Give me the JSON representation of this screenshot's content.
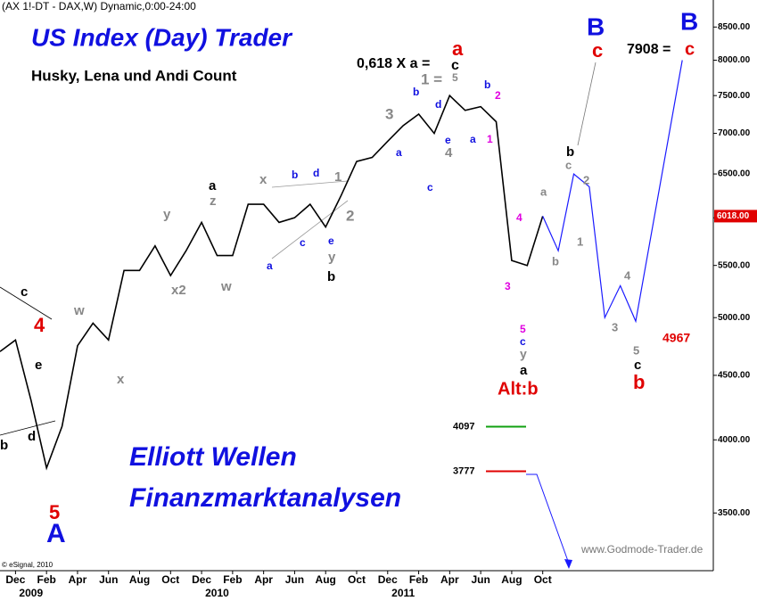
{
  "chart_data": {
    "type": "line",
    "header": "(AX 1!-DT - DAX,W) Dynamic,0:00-24:00",
    "copyright": "© eSignal, 2010",
    "source": "www.Godmode-Trader.de",
    "log_scale": true,
    "xlim": [
      "2008-11",
      "2012-09"
    ],
    "ylim": [
      3150,
      8930
    ],
    "yticks": [
      {
        "value": 3500,
        "label": "3500.00"
      },
      {
        "value": 4000,
        "label": "4000.00"
      },
      {
        "value": 4500,
        "label": "4500.00"
      },
      {
        "value": 5000,
        "label": "5000.00"
      },
      {
        "value": 5500,
        "label": "5500.00"
      },
      {
        "value": 6000,
        "label": "6000.00"
      },
      {
        "value": 6500,
        "label": "6500.00"
      },
      {
        "value": 7000,
        "label": "7000.00"
      },
      {
        "value": 7500,
        "label": "7500.00"
      },
      {
        "value": 8000,
        "label": "8000.00"
      },
      {
        "value": 8500,
        "label": "8500.00"
      }
    ],
    "xticks": [
      {
        "value": "2008-12",
        "label": "Dec"
      },
      {
        "value": "2009-02",
        "label": "Feb"
      },
      {
        "value": "2009-04",
        "label": "Apr"
      },
      {
        "value": "2009-06",
        "label": "Jun"
      },
      {
        "value": "2009-08",
        "label": "Aug"
      },
      {
        "value": "2009-10",
        "label": "Oct"
      },
      {
        "value": "2009-12",
        "label": "Dec"
      },
      {
        "value": "2010-02",
        "label": "Feb"
      },
      {
        "value": "2010-04",
        "label": "Apr"
      },
      {
        "value": "2010-06",
        "label": "Jun"
      },
      {
        "value": "2010-08",
        "label": "Aug"
      },
      {
        "value": "2010-10",
        "label": "Oct"
      },
      {
        "value": "2010-12",
        "label": "Dec"
      },
      {
        "value": "2011-02",
        "label": "Feb"
      },
      {
        "value": "2011-04",
        "label": "Apr"
      },
      {
        "value": "2011-06",
        "label": "Jun"
      },
      {
        "value": "2011-08",
        "label": "Aug"
      },
      {
        "value": "2011-10",
        "label": "Oct"
      }
    ],
    "year_labels": [
      {
        "value": "2009-01",
        "label": "2009"
      },
      {
        "value": "2010-01",
        "label": "2010"
      },
      {
        "value": "2011-01",
        "label": "2011"
      }
    ],
    "series": [
      {
        "name": "DAX",
        "color": "#000000",
        "x": [
          "2008-11",
          "2008-12",
          "2009-01",
          "2009-02",
          "2009-03",
          "2009-04",
          "2009-05",
          "2009-06",
          "2009-07",
          "2009-08",
          "2009-09",
          "2009-10",
          "2009-11",
          "2009-12",
          "2010-01",
          "2010-02",
          "2010-03",
          "2010-04",
          "2010-05",
          "2010-06",
          "2010-07",
          "2010-08",
          "2010-09",
          "2010-10",
          "2010-11",
          "2010-12",
          "2011-01",
          "2011-02",
          "2011-03",
          "2011-04",
          "2011-05",
          "2011-06",
          "2011-07",
          "2011-08",
          "2011-09",
          "2011-10"
        ],
        "values": [
          4700,
          4800,
          4300,
          3800,
          4100,
          4750,
          4950,
          4800,
          5450,
          5450,
          5700,
          5400,
          5650,
          5950,
          5600,
          5600,
          6150,
          6150,
          5950,
          6000,
          6150,
          5900,
          6250,
          6650,
          6700,
          6900,
          7100,
          7250,
          7000,
          7500,
          7300,
          7350,
          7150,
          5550,
          5500,
          6018
        ]
      },
      {
        "name": "Projection",
        "color": "#1a1aff",
        "x": [
          "2011-10",
          "2011-11",
          "2011-12",
          "2012-01",
          "2012-02",
          "2012-03",
          "2012-04",
          "2012-07"
        ],
        "values": [
          6018,
          5650,
          6500,
          6350,
          5000,
          5300,
          4967,
          8000
        ]
      }
    ],
    "last_price": {
      "value": 6018,
      "label": "6018.00"
    },
    "levels": [
      {
        "value": 4097,
        "color": "#10a010"
      },
      {
        "value": 3777,
        "color": "#e00000"
      }
    ],
    "annotations": [
      {
        "text": "US Index (Day) Trader",
        "color": "#1010e0"
      },
      {
        "text": "Husky, Lena und Andi Count",
        "color": "#000000"
      },
      {
        "text": "Elliott Wellen",
        "color": "#1010e0"
      },
      {
        "text": "Finanzmarktanalysen",
        "color": "#1010e0"
      },
      {
        "text": "0,618 X a =",
        "color": "#000000"
      },
      {
        "text": "a",
        "color": "#e00000"
      },
      {
        "text": "c",
        "color": "#000000"
      },
      {
        "text": "B",
        "color": "#1010e0"
      },
      {
        "text": "c",
        "color": "#e00000"
      },
      {
        "text": "B",
        "color": "#1010e0"
      },
      {
        "text": "7908 =",
        "color": "#000000"
      },
      {
        "text": "c",
        "color": "#e00000"
      },
      {
        "text": "4967",
        "color": "#e00000"
      },
      {
        "text": "Alt:b",
        "color": "#e00000"
      },
      {
        "text": "c",
        "color": "#000000"
      },
      {
        "text": "4",
        "color": "#e00000"
      },
      {
        "text": "e",
        "color": "#000000"
      },
      {
        "text": "w",
        "color": "#888888"
      },
      {
        "text": "d",
        "color": "#000000"
      },
      {
        "text": "b",
        "color": "#000000"
      },
      {
        "text": "5",
        "color": "#e00000"
      },
      {
        "text": "A",
        "color": "#1010e0"
      },
      {
        "text": "x",
        "color": "#888888"
      },
      {
        "text": "y",
        "color": "#888888"
      },
      {
        "text": "x2",
        "color": "#888888"
      },
      {
        "text": "w",
        "color": "#888888"
      },
      {
        "text": "a",
        "color": "#000000"
      },
      {
        "text": "z",
        "color": "#888888"
      },
      {
        "text": "x",
        "color": "#888888"
      },
      {
        "text": "a",
        "color": "#1010e0"
      },
      {
        "text": "b",
        "color": "#1010e0"
      },
      {
        "text": "c",
        "color": "#1010e0"
      },
      {
        "text": "d",
        "color": "#1010e0"
      },
      {
        "text": "1",
        "color": "#888888"
      },
      {
        "text": "e",
        "color": "#1010e0"
      },
      {
        "text": "y",
        "color": "#888888"
      },
      {
        "text": "b",
        "color": "#000000"
      },
      {
        "text": "2",
        "color": "#888888"
      },
      {
        "text": "3",
        "color": "#888888"
      },
      {
        "text": "a",
        "color": "#1010e0"
      },
      {
        "text": "b",
        "color": "#1010e0"
      },
      {
        "text": "c",
        "color": "#1010e0"
      },
      {
        "text": "1 =",
        "color": "#888888"
      },
      {
        "text": "5",
        "color": "#888888"
      },
      {
        "text": "d",
        "color": "#1010e0"
      },
      {
        "text": "e",
        "color": "#1010e0"
      },
      {
        "text": "4",
        "color": "#888888"
      },
      {
        "text": "a",
        "color": "#1010e0"
      },
      {
        "text": "b",
        "color": "#1010e0"
      },
      {
        "text": "2",
        "color": "#e000e0"
      },
      {
        "text": "1",
        "color": "#e000e0"
      },
      {
        "text": "4",
        "color": "#e000e0"
      },
      {
        "text": "3",
        "color": "#e000e0"
      },
      {
        "text": "5",
        "color": "#e000e0"
      },
      {
        "text": "c",
        "color": "#1010e0"
      },
      {
        "text": "y",
        "color": "#888888"
      },
      {
        "text": "a",
        "color": "#000000"
      },
      {
        "text": "a",
        "color": "#888888"
      },
      {
        "text": "b",
        "color": "#888888"
      },
      {
        "text": "c",
        "color": "#888888"
      },
      {
        "text": "b",
        "color": "#000000"
      },
      {
        "text": "2",
        "color": "#888888"
      },
      {
        "text": "1",
        "color": "#888888"
      },
      {
        "text": "3",
        "color": "#888888"
      },
      {
        "text": "4",
        "color": "#888888"
      },
      {
        "text": "5",
        "color": "#888888"
      },
      {
        "text": "c",
        "color": "#000000"
      },
      {
        "text": "b",
        "color": "#e00000"
      }
    ]
  }
}
